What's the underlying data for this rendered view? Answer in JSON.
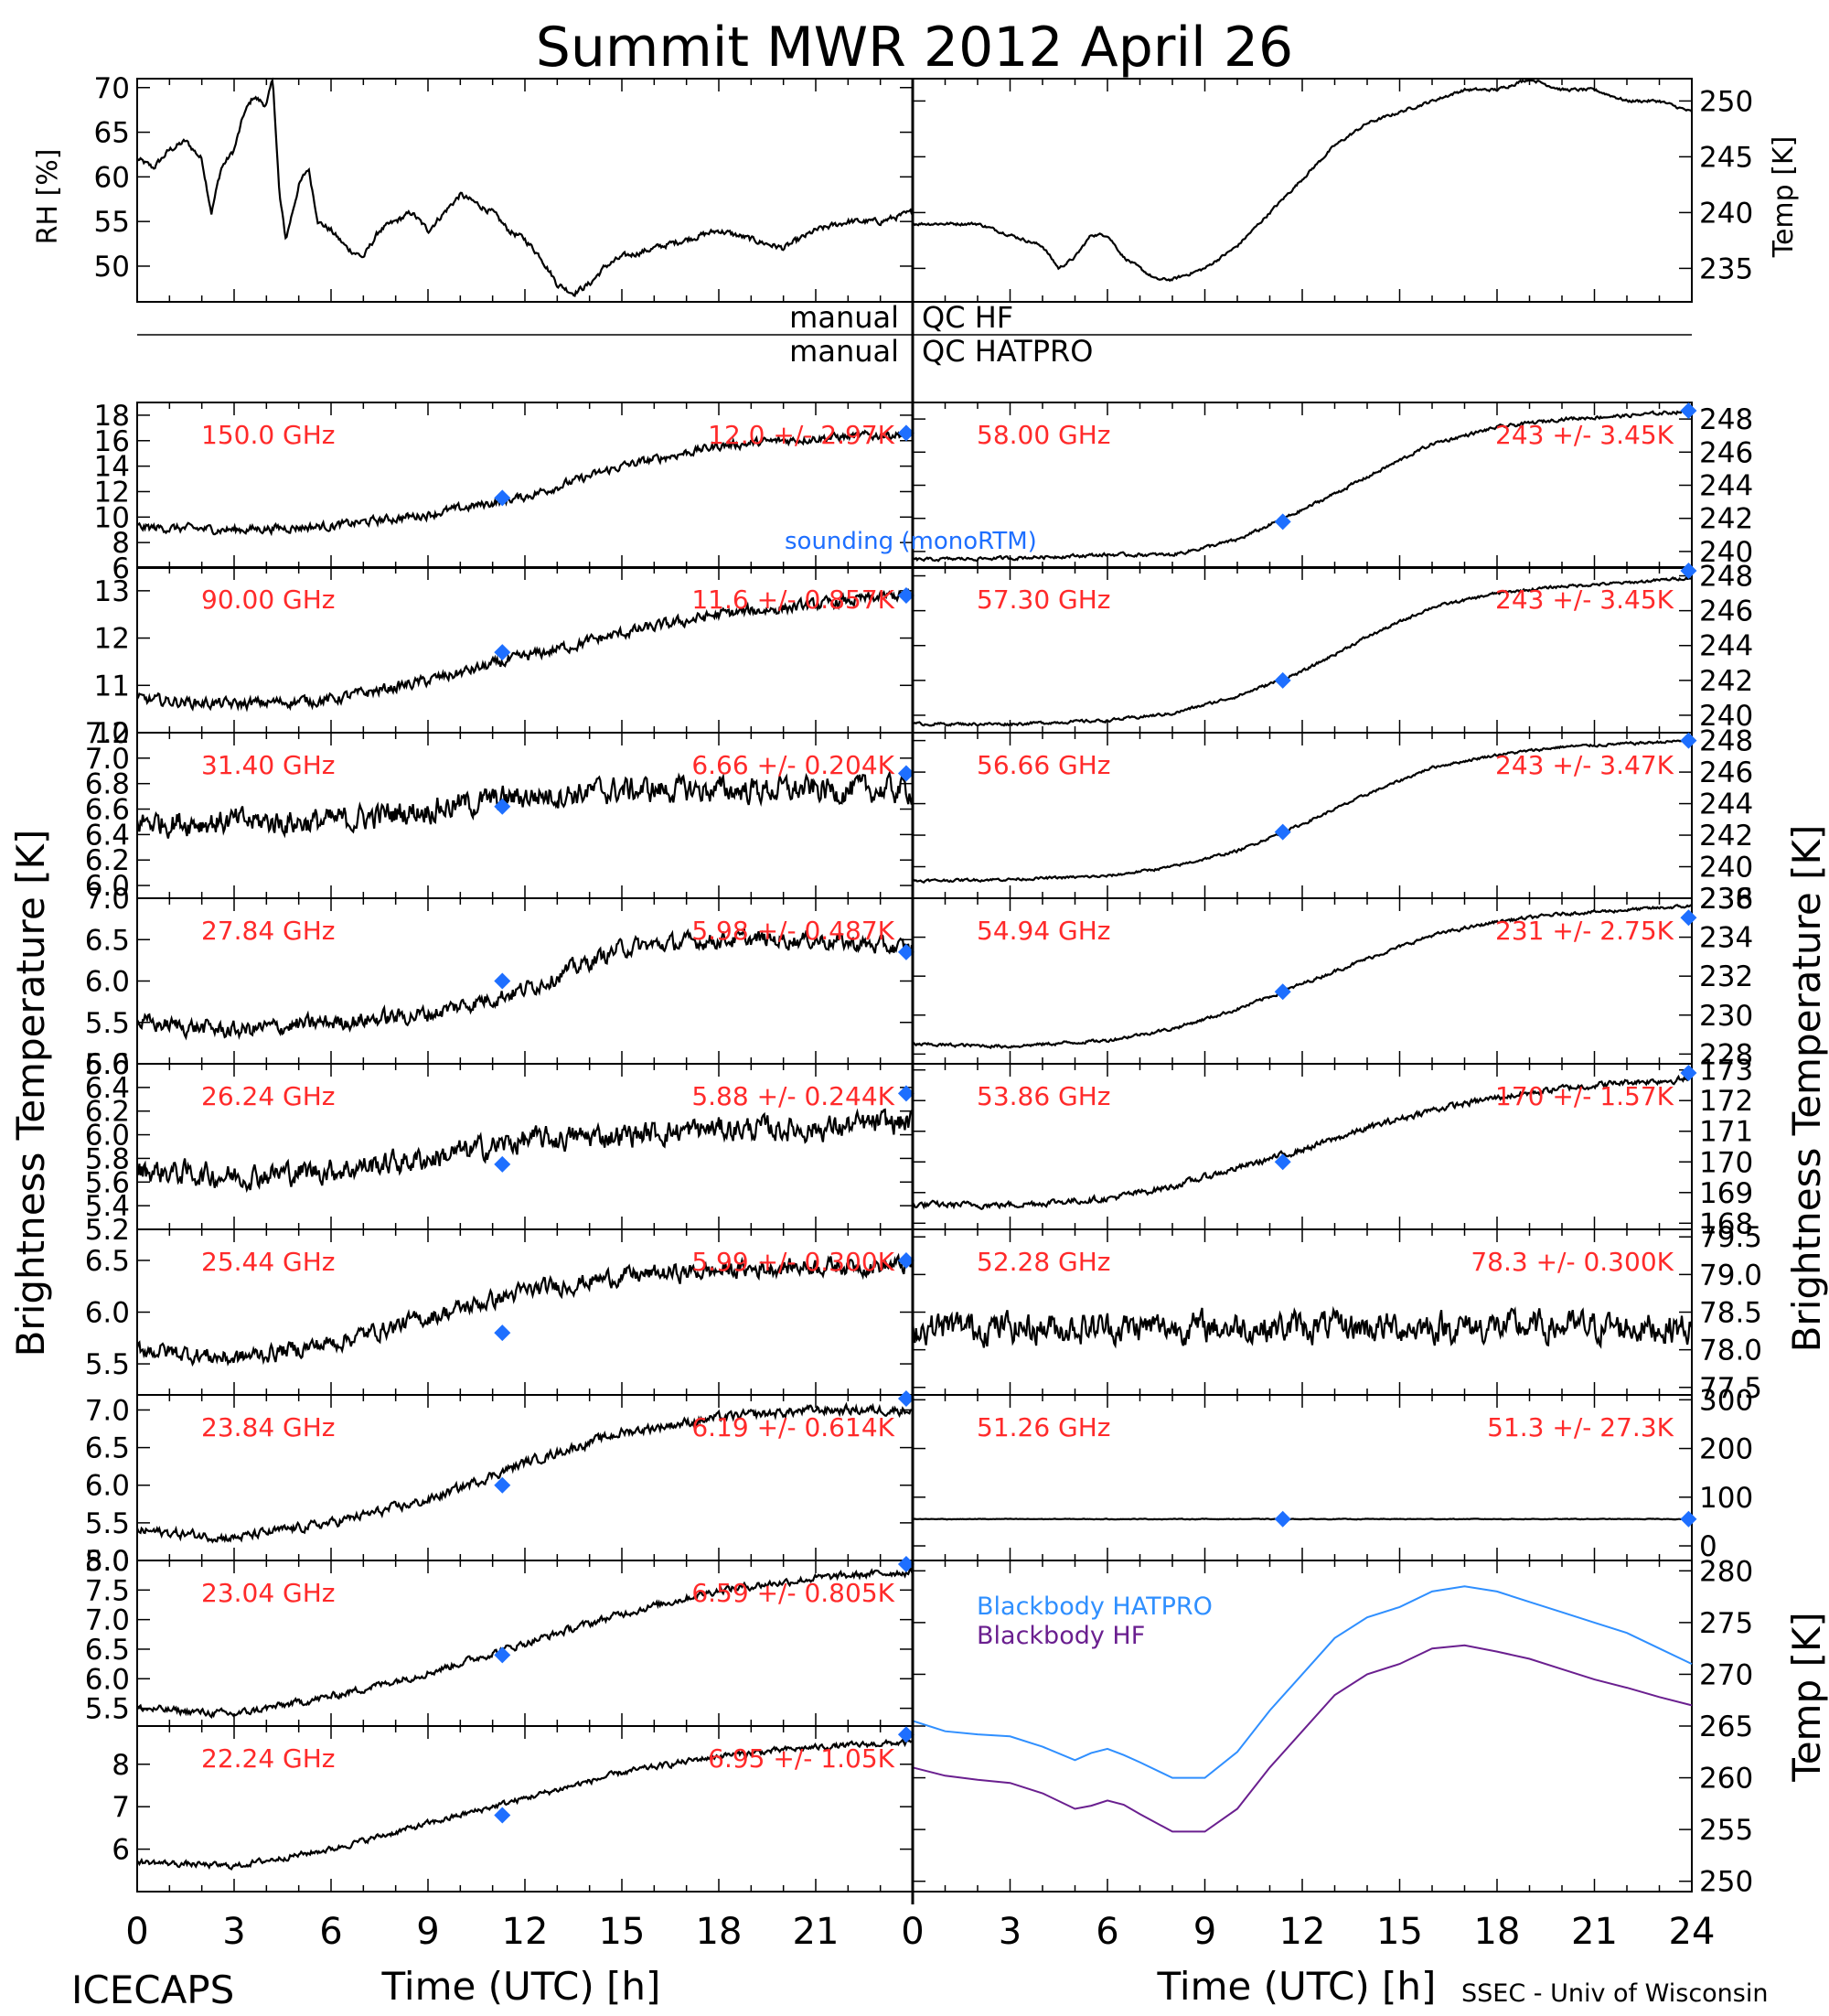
{
  "title": "Summit MWR 2012 April 26",
  "colors": {
    "label_red": "#ff2a2a",
    "sounding_blue": "#1e6fff",
    "bb_hatpro": "#2f8fff",
    "bb_hf": "#6a1f8f",
    "ink": "#000000"
  },
  "labels": {
    "rh_axis": "RH [%]",
    "temp_axis": "Temp [K]",
    "manual_hf": "manual",
    "qc_hf": "QC HF",
    "manual_hatpro": "manual",
    "qc_hatpro": "QC HATPRO",
    "sounding": "sounding (monoRTM)",
    "left_axis": "Brightness Temperature [K]",
    "right_axis": "Brightness Temperature [K]",
    "bb_temp_axis": "Temp [K]",
    "bb_hatpro": "Blackbody HATPRO",
    "bb_hf": "Blackbody HF",
    "xlabel_left": "Time (UTC) [h]",
    "xlabel_right": "Time (UTC) [h]",
    "footer_left": "ICECAPS",
    "footer_right": "SSEC - Univ of Wisconsin"
  },
  "x_ticks_left": [
    "0",
    "3",
    "6",
    "9",
    "12",
    "15",
    "18",
    "21"
  ],
  "x_ticks_right": [
    "0",
    "3",
    "6",
    "9",
    "12",
    "15",
    "18",
    "21",
    "24"
  ],
  "chart_data": [
    {
      "id": "rh",
      "type": "line",
      "ylabel": "RH [%]",
      "xlim": [
        0,
        24
      ],
      "ylim": [
        46,
        71
      ],
      "yticks": [
        "50",
        "55",
        "60",
        "65",
        "70"
      ],
      "x": [
        0,
        0.5,
        1,
        1.5,
        2,
        2.3,
        2.6,
        3,
        3.3,
        3.6,
        4,
        4.2,
        4.4,
        4.6,
        4.8,
        5,
        5.3,
        5.6,
        6,
        6.5,
        7,
        7.5,
        8,
        8.5,
        9,
        9.5,
        10,
        10.5,
        11,
        11.5,
        12,
        12.5,
        13,
        13.5,
        14,
        14.5,
        15,
        16,
        17,
        18,
        19,
        20,
        21,
        22,
        23,
        24
      ],
      "y": [
        62,
        61,
        63,
        64,
        62,
        56,
        61,
        63,
        67,
        69,
        68,
        71,
        58,
        53,
        56,
        59,
        61,
        55,
        54,
        52,
        51,
        54,
        55,
        56,
        54,
        56,
        58,
        57,
        56,
        54,
        53,
        51,
        48,
        47,
        48,
        50,
        51,
        52,
        53,
        54,
        53,
        52,
        54,
        55,
        55,
        56
      ]
    },
    {
      "id": "temp",
      "type": "line",
      "ylabel": "Temp [K]",
      "xlim": [
        0,
        24
      ],
      "ylim": [
        232,
        252
      ],
      "yticks": [
        "235",
        "240",
        "245",
        "250"
      ],
      "x": [
        0,
        1,
        2,
        3,
        4,
        4.5,
        5,
        5.5,
        6,
        6.5,
        7,
        7.5,
        8,
        9,
        10,
        11,
        12,
        13,
        14,
        15,
        16,
        17,
        18,
        19,
        20,
        21,
        22,
        23,
        24
      ],
      "y": [
        239,
        239,
        239,
        238,
        237,
        235,
        236,
        238,
        238,
        236,
        235,
        234,
        234,
        235,
        237,
        240,
        243,
        246,
        248,
        249,
        250,
        251,
        251,
        252,
        251,
        251,
        250,
        250,
        249
      ]
    },
    {
      "id": "ch150",
      "side": "left",
      "type": "line",
      "freq": "150.0 GHz",
      "stats": "12.0 +/- 2.97K",
      "ylim": [
        6,
        19
      ],
      "yticks": [
        "6",
        "8",
        "10",
        "12",
        "14",
        "16",
        "18"
      ],
      "x": [
        0,
        3,
        6,
        9,
        12,
        15,
        18,
        21,
        23.5
      ],
      "y": [
        9.2,
        9.0,
        9.3,
        10.2,
        11.6,
        14.0,
        15.6,
        16.2,
        16.5
      ],
      "noise": 1.0,
      "sounding": [
        {
          "x": 11.3,
          "y": 11.5
        },
        {
          "x": 23.8,
          "y": 16.6
        }
      ]
    },
    {
      "id": "ch90",
      "side": "left",
      "type": "line",
      "freq": "90.00 GHz",
      "stats": "11.6 +/- 0.857K",
      "ylim": [
        10,
        13.5
      ],
      "yticks": [
        "10",
        "11",
        "12",
        "13"
      ],
      "x": [
        0,
        3,
        6,
        9,
        12,
        15,
        18,
        21,
        23.5
      ],
      "y": [
        10.7,
        10.6,
        10.7,
        11.1,
        11.6,
        12.1,
        12.5,
        12.7,
        12.9
      ],
      "noise": 0.35,
      "sounding": [
        {
          "x": 11.3,
          "y": 11.7
        },
        {
          "x": 23.8,
          "y": 12.9
        }
      ]
    },
    {
      "id": "ch31",
      "side": "left",
      "type": "line",
      "freq": "31.40 GHz",
      "stats": "6.66 +/- 0.204K",
      "ylim": [
        5.9,
        7.2
      ],
      "yticks": [
        "6.0",
        "6.2",
        "6.4",
        "6.6",
        "6.8",
        "7.0",
        "7.2"
      ],
      "x": [
        0,
        3,
        6,
        9,
        12,
        15,
        18,
        21,
        23.5
      ],
      "y": [
        6.5,
        6.5,
        6.5,
        6.6,
        6.7,
        6.75,
        6.75,
        6.75,
        6.75
      ],
      "noise": 0.3,
      "sounding": [
        {
          "x": 11.3,
          "y": 6.62
        },
        {
          "x": 23.8,
          "y": 6.88
        }
      ]
    },
    {
      "id": "ch27",
      "side": "left",
      "type": "line",
      "freq": "27.84 GHz",
      "stats": "5.98 +/- 0.487K",
      "ylim": [
        5.0,
        7.0
      ],
      "yticks": [
        "5.0",
        "5.5",
        "6.0",
        "6.5",
        "7.0"
      ],
      "x": [
        0,
        3,
        6,
        9,
        12,
        15,
        18,
        21,
        23.5
      ],
      "y": [
        5.5,
        5.4,
        5.5,
        5.6,
        5.9,
        6.4,
        6.5,
        6.5,
        6.4
      ],
      "noise": 0.3,
      "sounding": [
        {
          "x": 11.3,
          "y": 6.0
        },
        {
          "x": 23.8,
          "y": 6.35
        }
      ]
    },
    {
      "id": "ch26",
      "side": "left",
      "type": "line",
      "freq": "26.24 GHz",
      "stats": "5.88 +/- 0.244K",
      "ylim": [
        5.2,
        6.6
      ],
      "yticks": [
        "5.2",
        "5.4",
        "5.6",
        "5.8",
        "6.0",
        "6.2",
        "6.4",
        "6.6"
      ],
      "x": [
        0,
        3,
        6,
        9,
        12,
        15,
        18,
        21,
        23.5
      ],
      "y": [
        5.7,
        5.65,
        5.7,
        5.8,
        5.95,
        6.0,
        6.05,
        6.05,
        6.1
      ],
      "noise": 0.3,
      "sounding": [
        {
          "x": 11.3,
          "y": 5.75
        },
        {
          "x": 23.8,
          "y": 6.35
        }
      ]
    },
    {
      "id": "ch25",
      "side": "left",
      "type": "line",
      "freq": "25.44 GHz",
      "stats": "5.99 +/- 0.300K",
      "ylim": [
        5.2,
        6.8
      ],
      "yticks": [
        "5.5",
        "6.0",
        "6.5"
      ],
      "x": [
        0,
        3,
        6,
        9,
        12,
        15,
        18,
        21,
        23.5
      ],
      "y": [
        5.65,
        5.55,
        5.7,
        5.95,
        6.2,
        6.35,
        6.4,
        6.45,
        6.45
      ],
      "noise": 0.25,
      "sounding": [
        {
          "x": 11.3,
          "y": 5.8
        },
        {
          "x": 23.8,
          "y": 6.5
        }
      ]
    },
    {
      "id": "ch23",
      "side": "left",
      "type": "line",
      "freq": "23.84 GHz",
      "stats": "6.19 +/- 0.614K",
      "ylim": [
        5.0,
        7.2
      ],
      "yticks": [
        "5.0",
        "5.5",
        "6.0",
        "6.5",
        "7.0"
      ],
      "x": [
        0,
        3,
        6,
        9,
        12,
        15,
        18,
        21,
        23.5
      ],
      "y": [
        5.4,
        5.3,
        5.5,
        5.8,
        6.3,
        6.7,
        6.9,
        7.0,
        7.0
      ],
      "noise": 0.18,
      "sounding": [
        {
          "x": 11.3,
          "y": 6.0
        },
        {
          "x": 23.8,
          "y": 7.2
        }
      ]
    },
    {
      "id": "ch23b",
      "side": "left",
      "type": "line",
      "freq": "23.04 GHz",
      "stats": "6.59 +/- 0.805K",
      "ylim": [
        5.2,
        8.0
      ],
      "yticks": [
        "5.5",
        "6.0",
        "6.5",
        "7.0",
        "7.5",
        "8.0"
      ],
      "x": [
        0,
        3,
        6,
        9,
        12,
        15,
        18,
        21,
        23.5
      ],
      "y": [
        5.5,
        5.4,
        5.7,
        6.1,
        6.6,
        7.1,
        7.5,
        7.7,
        7.8
      ],
      "noise": 0.18,
      "sounding": [
        {
          "x": 11.3,
          "y": 6.4
        },
        {
          "x": 23.8,
          "y": 8.0
        }
      ]
    },
    {
      "id": "ch22",
      "side": "left",
      "type": "line",
      "freq": "22.24 GHz",
      "stats": "6.95 +/- 1.05K",
      "ylim": [
        5.0,
        8.9
      ],
      "yticks": [
        "6",
        "7",
        "8"
      ],
      "x": [
        0,
        3,
        6,
        9,
        12,
        15,
        18,
        21,
        23.5
      ],
      "y": [
        5.7,
        5.6,
        6.0,
        6.6,
        7.2,
        7.8,
        8.2,
        8.4,
        8.5
      ],
      "noise": 0.2,
      "sounding": [
        {
          "x": 11.3,
          "y": 6.8
        },
        {
          "x": 23.8,
          "y": 8.7
        }
      ]
    },
    {
      "id": "ch58",
      "side": "right",
      "type": "line",
      "freq": "58.00 GHz",
      "stats": "243 +/- 3.45K",
      "ylim": [
        239,
        249
      ],
      "yticks": [
        "240",
        "242",
        "244",
        "246",
        "248"
      ],
      "x": [
        0,
        3,
        6,
        8,
        10,
        12,
        14,
        16,
        18,
        20,
        22,
        24
      ],
      "y": [
        239.5,
        239.6,
        239.8,
        239.8,
        240.7,
        242.5,
        244.5,
        246.5,
        247.5,
        248.0,
        248.2,
        248.5
      ],
      "noise": 0.3,
      "sounding": [
        {
          "x": 11.4,
          "y": 241.8
        },
        {
          "x": 23.9,
          "y": 248.5
        }
      ]
    },
    {
      "id": "ch57",
      "side": "right",
      "type": "line",
      "freq": "57.30 GHz",
      "stats": "243 +/- 3.45K",
      "ylim": [
        239,
        248.5
      ],
      "yticks": [
        "240",
        "242",
        "244",
        "246",
        "248"
      ],
      "x": [
        0,
        3,
        6,
        8,
        10,
        12,
        14,
        16,
        18,
        20,
        22,
        24
      ],
      "y": [
        239.5,
        239.5,
        239.7,
        240.1,
        241.1,
        242.5,
        244.5,
        246.2,
        247.0,
        247.4,
        247.6,
        247.9
      ],
      "noise": 0.25,
      "sounding": [
        {
          "x": 11.4,
          "y": 242.0
        },
        {
          "x": 23.9,
          "y": 248.3
        }
      ]
    },
    {
      "id": "ch56",
      "side": "right",
      "type": "line",
      "freq": "56.66 GHz",
      "stats": "243 +/- 3.47K",
      "ylim": [
        238,
        248.5
      ],
      "yticks": [
        "238",
        "240",
        "242",
        "244",
        "246",
        "248"
      ],
      "x": [
        0,
        3,
        6,
        8,
        10,
        12,
        14,
        16,
        18,
        20,
        22,
        24
      ],
      "y": [
        239.1,
        239.2,
        239.4,
        240.0,
        241.0,
        242.7,
        244.6,
        246.3,
        247.1,
        247.6,
        247.8,
        248.0
      ],
      "noise": 0.25,
      "sounding": [
        {
          "x": 11.4,
          "y": 242.2
        },
        {
          "x": 23.9,
          "y": 248.0
        }
      ]
    },
    {
      "id": "ch54",
      "side": "right",
      "type": "line",
      "freq": "54.94 GHz",
      "stats": "231 +/- 2.75K",
      "ylim": [
        227.5,
        236
      ],
      "yticks": [
        "228",
        "230",
        "232",
        "234",
        "236"
      ],
      "x": [
        0,
        3,
        6,
        8,
        10,
        12,
        14,
        16,
        18,
        20,
        22,
        24
      ],
      "y": [
        228.5,
        228.4,
        228.7,
        229.3,
        230.3,
        231.6,
        232.9,
        234.1,
        234.8,
        235.2,
        235.4,
        235.6
      ],
      "noise": 0.25,
      "sounding": [
        {
          "x": 11.4,
          "y": 231.2
        },
        {
          "x": 23.9,
          "y": 235.0
        }
      ]
    },
    {
      "id": "ch53",
      "side": "right",
      "type": "line",
      "freq": "53.86 GHz",
      "stats": "170 +/- 1.57K",
      "ylim": [
        167.8,
        173.2
      ],
      "yticks": [
        "168",
        "169",
        "170",
        "171",
        "172",
        "173"
      ],
      "x": [
        0,
        3,
        6,
        8,
        10,
        12,
        14,
        16,
        18,
        20,
        22,
        24
      ],
      "y": [
        168.6,
        168.6,
        168.8,
        169.2,
        169.8,
        170.4,
        171.1,
        171.7,
        172.1,
        172.4,
        172.6,
        172.7
      ],
      "noise": 0.3,
      "sounding": [
        {
          "x": 11.4,
          "y": 170.0
        },
        {
          "x": 23.9,
          "y": 172.9
        }
      ]
    },
    {
      "id": "ch52",
      "side": "right",
      "type": "line",
      "freq": "52.28 GHz",
      "stats": "78.3 +/- 0.300K",
      "ylim": [
        77.4,
        79.6
      ],
      "yticks": [
        "77.5",
        "78.0",
        "78.5",
        "79.0",
        "79.5"
      ],
      "x": [
        0,
        6,
        12,
        18,
        24
      ],
      "y": [
        78.3,
        78.3,
        78.3,
        78.3,
        78.3
      ],
      "noise": 0.6,
      "sounding": []
    },
    {
      "id": "ch51",
      "side": "right",
      "type": "line",
      "freq": "51.26 GHz",
      "stats": "51.3 +/- 27.3K",
      "ylim": [
        -30,
        310
      ],
      "yticks": [
        "0",
        "100",
        "200",
        "300"
      ],
      "x": [
        0,
        6,
        12,
        18,
        24
      ],
      "y": [
        55,
        55,
        55,
        55,
        55
      ],
      "noise": 2,
      "sounding": [
        {
          "x": 11.4,
          "y": 55
        },
        {
          "x": 23.9,
          "y": 55
        }
      ]
    },
    {
      "id": "blackbody",
      "side": "right",
      "type": "line",
      "ylabel": "Temp [K]",
      "ylim": [
        249,
        281
      ],
      "yticks": [
        "250",
        "255",
        "260",
        "265",
        "270",
        "275",
        "280"
      ],
      "x": [
        0,
        1,
        2,
        3,
        4,
        5,
        5.5,
        6,
        6.5,
        7,
        8,
        9,
        10,
        11,
        12,
        13,
        14,
        15,
        16,
        17,
        18,
        19,
        20,
        21,
        22,
        23,
        24
      ],
      "series": [
        {
          "name": "Blackbody HATPRO",
          "values": [
            265.5,
            264.5,
            264.2,
            264.0,
            263.0,
            261.7,
            262.4,
            262.8,
            262.2,
            261.5,
            260.0,
            260.0,
            262.5,
            266.5,
            270.0,
            273.5,
            275.5,
            276.5,
            278.0,
            278.5,
            278.0,
            277.0,
            276.0,
            275.0,
            274.0,
            272.5,
            271.0
          ]
        },
        {
          "name": "Blackbody HF",
          "values": [
            261.0,
            260.2,
            259.8,
            259.5,
            258.5,
            257.0,
            257.3,
            257.8,
            257.4,
            256.5,
            254.8,
            254.8,
            257.0,
            261.0,
            264.5,
            268.0,
            270.0,
            271.0,
            272.5,
            272.8,
            272.2,
            271.5,
            270.5,
            269.5,
            268.7,
            267.8,
            267.0
          ]
        }
      ]
    }
  ]
}
